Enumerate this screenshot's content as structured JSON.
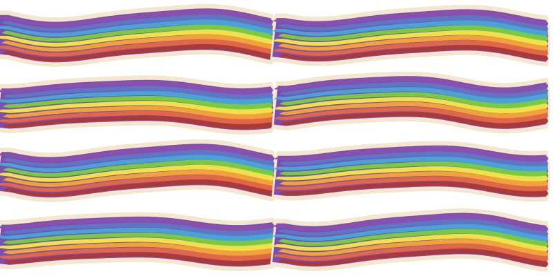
{
  "colors": {
    "background": "#ffffff",
    "halo": "#f4e6cf",
    "outline": "#7b4fb0",
    "stripes": [
      "#8a50b0",
      "#5f76c4",
      "#4aa3d6",
      "#7ac943",
      "#f2e04a",
      "#f2a13b",
      "#e2664a",
      "#a83a3a"
    ]
  },
  "icons": [
    "rainbow-ribbon-icon"
  ],
  "ribbons": [
    {
      "name": "rainbow-ribbon-1"
    },
    {
      "name": "rainbow-ribbon-2"
    },
    {
      "name": "rainbow-ribbon-3"
    },
    {
      "name": "rainbow-ribbon-4"
    },
    {
      "name": "rainbow-ribbon-5"
    },
    {
      "name": "rainbow-ribbon-6"
    },
    {
      "name": "rainbow-ribbon-7"
    },
    {
      "name": "rainbow-ribbon-8"
    }
  ]
}
